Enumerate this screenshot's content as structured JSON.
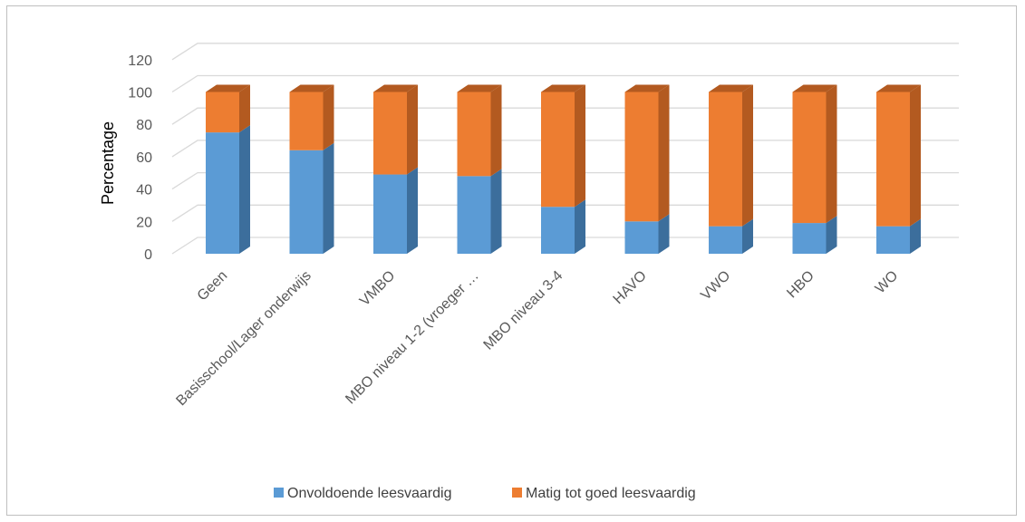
{
  "chart_data": {
    "type": "bar",
    "stacked": true,
    "three_d": true,
    "title": "",
    "xlabel": "",
    "ylabel": "Percentage",
    "ylim": [
      0,
      120
    ],
    "yticks": [
      0,
      20,
      40,
      60,
      80,
      100,
      120
    ],
    "grid": true,
    "legend_position": "bottom",
    "categories": [
      "Geen",
      "Basisschool/Lager onderwijs",
      "VMBO",
      "MBO niveau 1-2 (vroeger …",
      "MBO niveau 3-4",
      "HAVO",
      "VWO",
      "HBO",
      "WO"
    ],
    "series": [
      {
        "name": "Onvoldoende leesvaardig",
        "color": "#5b9bd5",
        "side_color": "#3c6e9c",
        "values": [
          75,
          64,
          49,
          48,
          29,
          20,
          17,
          19,
          17
        ]
      },
      {
        "name": "Matig tot goed leesvaardig",
        "color": "#ed7d31",
        "side_color": "#b35a20",
        "values": [
          25,
          36,
          51,
          52,
          71,
          80,
          83,
          81,
          83
        ]
      }
    ]
  }
}
